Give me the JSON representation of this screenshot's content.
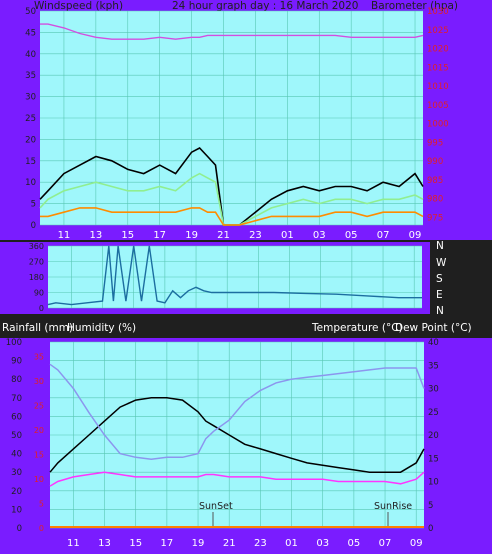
{
  "header": {
    "left_label": "Windspeed (kph)",
    "title": "24 hour graph day : 16 March 2020",
    "right_label": "Barometer (hpa)"
  },
  "colors": {
    "frame": "#7a1cff",
    "plot_bg": "#9ff7fb",
    "grid": "#59c7b4",
    "wind_gust": "#000000",
    "wind_avg": "#90ee90",
    "wind_min": "#ff8c00",
    "barometer": "#d24fe0",
    "direction": "#1c6ea0",
    "temperature": "#000000",
    "humidity": "#8c96ee",
    "dew_point": "#ff35ff",
    "rainfall": "#ff7f00",
    "axis_text_dark": "#1f1f1f",
    "axis_text_red": "#e0202a",
    "time_text": "#ffffff"
  },
  "time_labels": [
    "11",
    "13",
    "15",
    "17",
    "19",
    "21",
    "23",
    "01",
    "03",
    "05",
    "07",
    "09"
  ],
  "panel_labels": {
    "rainfall": "Rainfall (mm)",
    "humidity": "Humidity (%)",
    "temperature": "Temperature (°C)",
    "dew_point": "Dew Point (°C)"
  },
  "compass": [
    "N",
    "W",
    "S",
    "E",
    "N"
  ],
  "events": {
    "sunset": "SunSet",
    "sunrise": "SunRise"
  },
  "chart_data": [
    {
      "type": "line",
      "panel": "wind_barometer",
      "x": [
        9.5,
        10,
        11,
        12,
        13,
        14,
        15,
        16,
        17,
        18,
        19,
        19.5,
        20,
        20.5,
        21,
        22,
        23,
        24,
        25,
        26,
        27,
        28,
        29,
        30,
        31,
        32,
        33,
        33.5
      ],
      "x_tick_labels": [
        "11",
        "13",
        "15",
        "17",
        "19",
        "21",
        "23",
        "01",
        "03",
        "05",
        "07",
        "09"
      ],
      "y_left_ticks": [
        0,
        5,
        10,
        15,
        20,
        25,
        30,
        35,
        40,
        45,
        50
      ],
      "y_right_ticks": [
        975,
        980,
        985,
        990,
        995,
        1000,
        1005,
        1010,
        1015,
        1020,
        1025,
        1030
      ],
      "ylim_left": [
        0,
        50
      ],
      "ylim_right": [
        973,
        1030
      ],
      "xlabel": "",
      "ylabel_left": "Windspeed (kph)",
      "ylabel_right": "Barometer (hpa)",
      "series": [
        {
          "name": "Wind gust",
          "axis": "left",
          "values": [
            6,
            8,
            12,
            14,
            16,
            15,
            13,
            12,
            14,
            12,
            17,
            18,
            16,
            14,
            0,
            0,
            3,
            6,
            8,
            9,
            8,
            9,
            9,
            8,
            10,
            9,
            12,
            9
          ]
        },
        {
          "name": "Wind average",
          "axis": "left",
          "values": [
            4,
            6,
            8,
            9,
            10,
            9,
            8,
            8,
            9,
            8,
            11,
            12,
            11,
            10,
            0,
            0,
            2,
            4,
            5,
            6,
            5,
            6,
            6,
            5,
            6,
            6,
            7,
            6
          ]
        },
        {
          "name": "Wind minimum",
          "axis": "left",
          "values": [
            2,
            2,
            3,
            4,
            4,
            3,
            3,
            3,
            3,
            3,
            4,
            4,
            3,
            3,
            0,
            0,
            1,
            2,
            2,
            2,
            2,
            3,
            3,
            2,
            3,
            3,
            3,
            2
          ]
        },
        {
          "name": "Barometer",
          "axis": "right",
          "values": [
            1026.5,
            1026.5,
            1025.5,
            1024,
            1023,
            1022.5,
            1022.5,
            1022.5,
            1023,
            1022.5,
            1023,
            1023,
            1023.5,
            1023.5,
            1023.5,
            1023.5,
            1023.5,
            1023.5,
            1023.5,
            1023.5,
            1023.5,
            1023.5,
            1023,
            1023,
            1023,
            1023,
            1023,
            1023.5
          ]
        }
      ]
    },
    {
      "type": "line",
      "panel": "wind_direction",
      "x": [
        9.5,
        10,
        11,
        12,
        13,
        13.4,
        13.7,
        14,
        14.5,
        15,
        15.5,
        16,
        16.5,
        17,
        17.5,
        18,
        18.5,
        19,
        19.5,
        20,
        21,
        22,
        23,
        24,
        26,
        28,
        30,
        32,
        33.5
      ],
      "values": [
        20,
        30,
        20,
        30,
        40,
        360,
        40,
        360,
        40,
        360,
        40,
        360,
        40,
        30,
        100,
        60,
        100,
        120,
        100,
        90,
        90,
        90,
        90,
        90,
        85,
        80,
        70,
        60,
        60
      ],
      "ylim": [
        0,
        360
      ],
      "y_tick_labels": [
        "360",
        "270",
        "180",
        "90",
        "0"
      ]
    },
    {
      "type": "line",
      "panel": "temp_humidity",
      "x": [
        9.5,
        10,
        11,
        12,
        13,
        14,
        15,
        16,
        17,
        18,
        19,
        19.5,
        20,
        21,
        22,
        23,
        24,
        25,
        26,
        27,
        28,
        29,
        30,
        31,
        32,
        33,
        33.5
      ],
      "x_tick_labels": [
        "11",
        "13",
        "15",
        "17",
        "19",
        "21",
        "23",
        "01",
        "03",
        "05",
        "07",
        "09"
      ],
      "y_left_ticks": [
        0,
        10,
        20,
        30,
        40,
        50,
        60,
        70,
        80,
        90,
        100
      ],
      "y_rain_ticks": [
        0,
        5,
        10,
        15,
        20,
        25,
        30,
        35
      ],
      "y_right_ticks": [
        0,
        5,
        10,
        15,
        20,
        25,
        30,
        35,
        40
      ],
      "ylim_left": [
        0,
        100
      ],
      "ylim_right": [
        0,
        40
      ],
      "series": [
        {
          "name": "Temperature",
          "axis": "right",
          "values": [
            12,
            14,
            17,
            20,
            23,
            26,
            27.5,
            28,
            28,
            27.5,
            25,
            23,
            22,
            20,
            18,
            17,
            16,
            15,
            14,
            13.5,
            13,
            12.5,
            12,
            12,
            12,
            14,
            17
          ]
        },
        {
          "name": "Humidity",
          "axis": "left",
          "values": [
            88,
            85,
            75,
            62,
            50,
            40,
            38,
            37,
            38,
            38,
            40,
            48,
            52,
            58,
            68,
            74,
            78,
            80,
            81,
            82,
            83,
            84,
            85,
            86,
            86,
            86,
            75
          ]
        },
        {
          "name": "Dew Point",
          "axis": "right",
          "values": [
            9,
            10,
            11,
            11.5,
            12,
            11.5,
            11,
            11,
            11,
            11,
            11,
            11.5,
            11.5,
            11,
            11,
            11,
            10.5,
            10.5,
            10.5,
            10.5,
            10,
            10,
            10,
            10,
            9.5,
            10.5,
            12
          ]
        },
        {
          "name": "Rainfall",
          "axis": "rain",
          "values": [
            0,
            0,
            0,
            0,
            0,
            0,
            0,
            0,
            0,
            0,
            0,
            0,
            0,
            0,
            0,
            0,
            0,
            0,
            0,
            0,
            0,
            0,
            0,
            0,
            0,
            0,
            0
          ]
        }
      ]
    }
  ]
}
